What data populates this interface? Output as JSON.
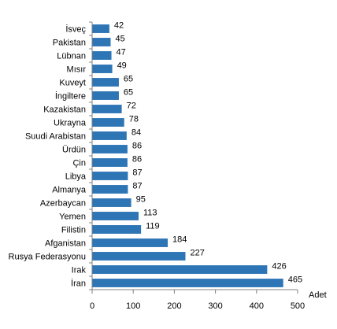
{
  "chart_data": {
    "type": "bar",
    "orientation": "horizontal",
    "categories": [
      "İsveç",
      "Pakistan",
      "Lübnan",
      "Mısır",
      "Kuveyt",
      "İngiltere",
      "Kazakistan",
      "Ukrayna",
      "Suudi Arabistan",
      "Ürdün",
      "Çin",
      "Libya",
      "Almanya",
      "Azerbaycan",
      "Yemen",
      "Filistin",
      "Afganistan",
      "Rusya Federasyonu",
      "Irak",
      "İran"
    ],
    "values": [
      42,
      45,
      47,
      49,
      65,
      65,
      72,
      78,
      84,
      86,
      86,
      87,
      87,
      95,
      113,
      119,
      184,
      227,
      426,
      465
    ],
    "title": "",
    "xlabel": "Adet",
    "ylabel": "",
    "xlim": [
      0,
      500
    ],
    "x_ticks": [
      0,
      100,
      200,
      300,
      400,
      500
    ],
    "grid": false,
    "legend": "none",
    "bar_color": "#2E75B6"
  }
}
